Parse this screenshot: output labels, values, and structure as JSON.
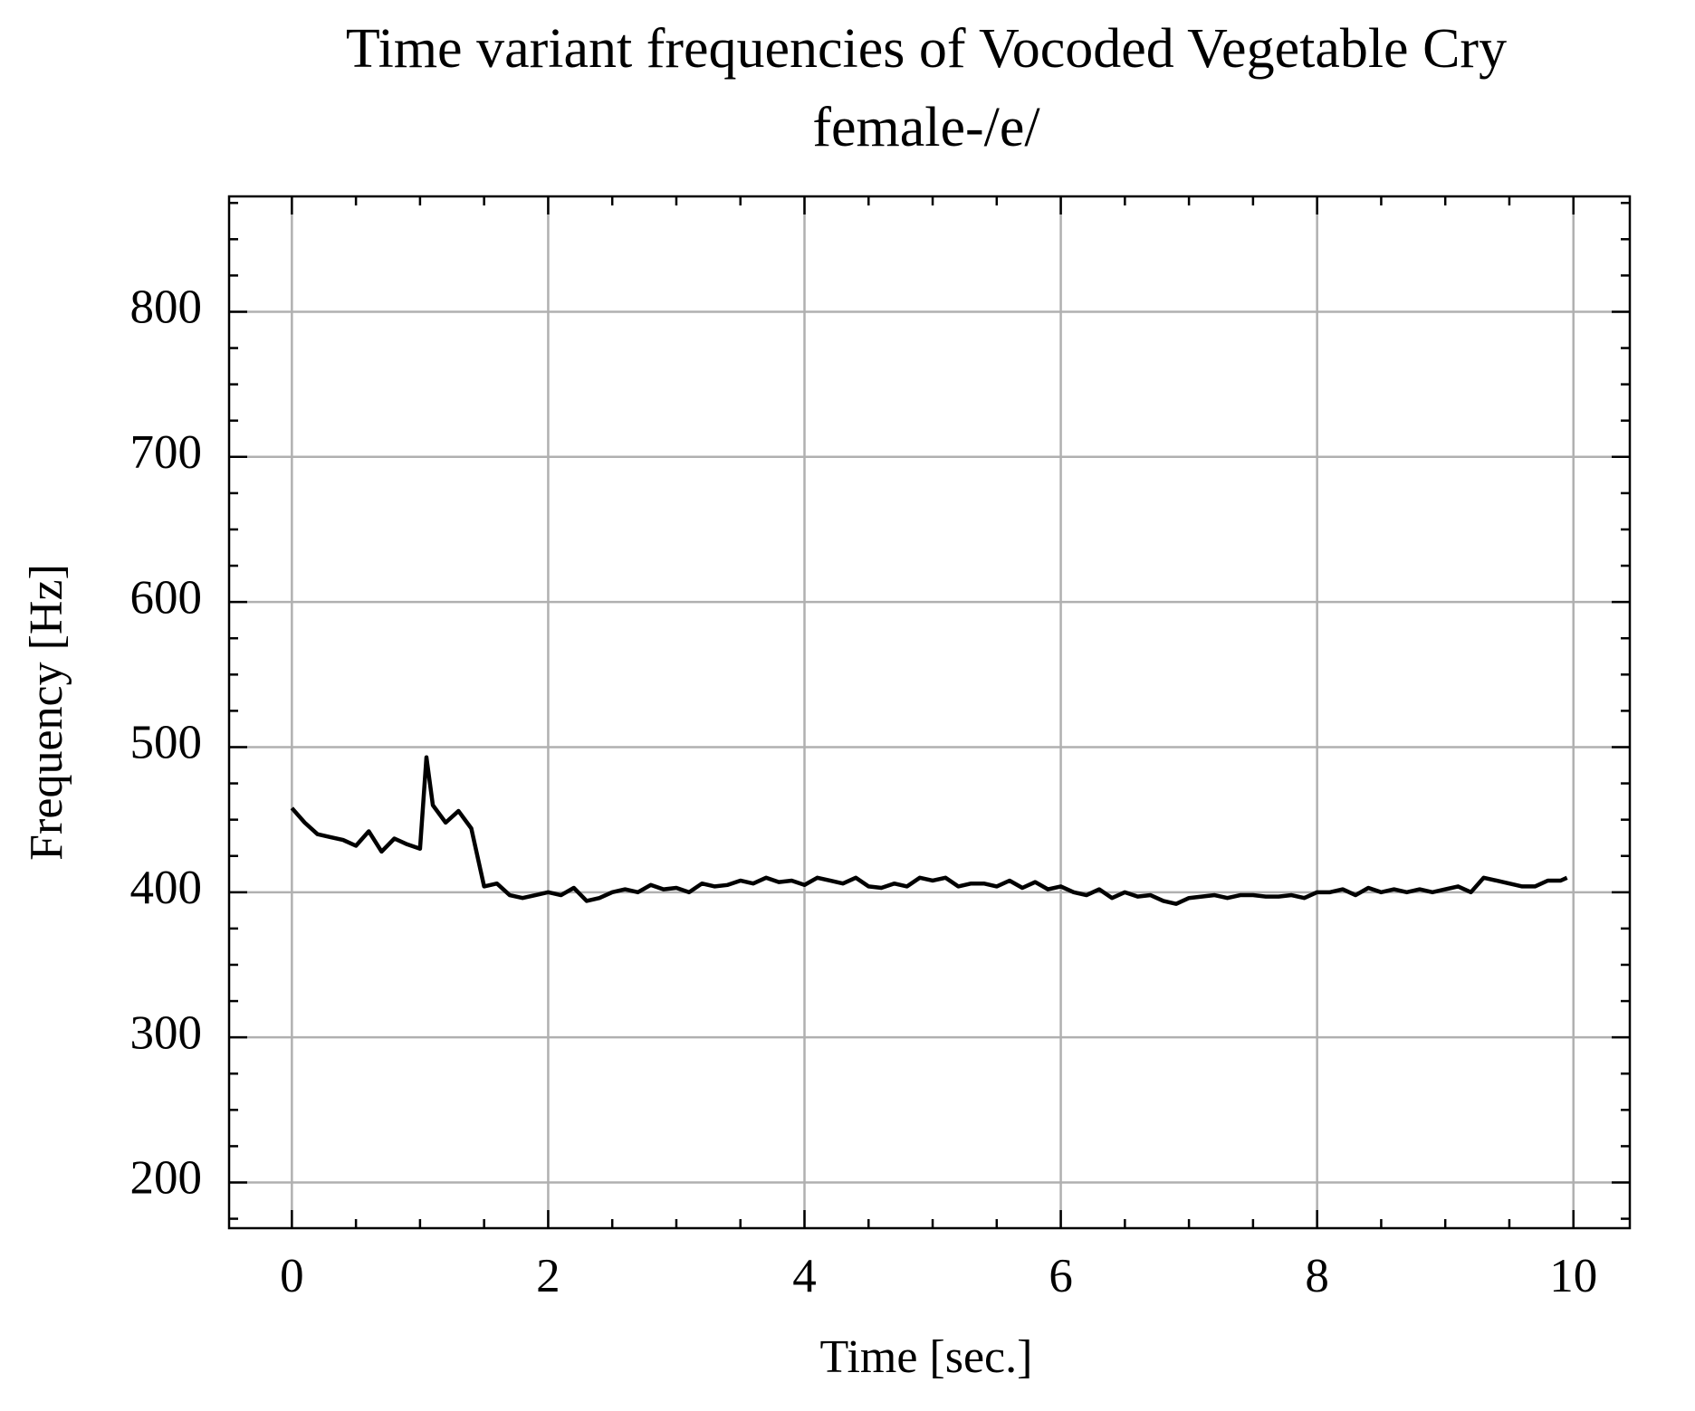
{
  "chart_data": {
    "type": "line",
    "title": [
      "Time variant frequencies of Vocoded Vegetable Cry",
      "female-/e/"
    ],
    "xlabel": "Time [sec.]",
    "ylabel": "Frequency [Hz]",
    "x": [
      0,
      0.1,
      0.2,
      0.3,
      0.4,
      0.5,
      0.6,
      0.7,
      0.8,
      0.9,
      1.0,
      1.05,
      1.1,
      1.2,
      1.3,
      1.4,
      1.5,
      1.6,
      1.7,
      1.8,
      1.9,
      2.0,
      2.1,
      2.2,
      2.3,
      2.4,
      2.5,
      2.6,
      2.7,
      2.8,
      2.9,
      3.0,
      3.1,
      3.2,
      3.3,
      3.4,
      3.5,
      3.6,
      3.7,
      3.8,
      3.9,
      4.0,
      4.1,
      4.2,
      4.3,
      4.4,
      4.5,
      4.6,
      4.7,
      4.8,
      4.9,
      5.0,
      5.1,
      5.2,
      5.3,
      5.4,
      5.5,
      5.6,
      5.7,
      5.8,
      5.9,
      6.0,
      6.1,
      6.2,
      6.3,
      6.4,
      6.5,
      6.6,
      6.7,
      6.8,
      6.9,
      7.0,
      7.1,
      7.2,
      7.3,
      7.4,
      7.5,
      7.6,
      7.7,
      7.8,
      7.9,
      8.0,
      8.1,
      8.2,
      8.3,
      8.4,
      8.5,
      8.6,
      8.7,
      8.8,
      8.9,
      9.0,
      9.1,
      9.2,
      9.3,
      9.4,
      9.5,
      9.6,
      9.7,
      9.8,
      9.9,
      9.95
    ],
    "series": [
      {
        "color": "#000000",
        "values": [
          458,
          448,
          440,
          438,
          436,
          432,
          442,
          428,
          437,
          433,
          430,
          493,
          460,
          448,
          456,
          444,
          404,
          406,
          398,
          396,
          398,
          400,
          398,
          403,
          394,
          396,
          400,
          402,
          400,
          405,
          402,
          403,
          400,
          406,
          404,
          405,
          408,
          406,
          410,
          407,
          408,
          405,
          410,
          408,
          406,
          410,
          404,
          403,
          406,
          404,
          410,
          408,
          410,
          404,
          406,
          406,
          404,
          408,
          403,
          407,
          402,
          404,
          400,
          398,
          402,
          396,
          400,
          397,
          398,
          394,
          392,
          396,
          397,
          398,
          396,
          398,
          398,
          397,
          397,
          398,
          396,
          400,
          400,
          402,
          398,
          403,
          400,
          402,
          400,
          402,
          400,
          402,
          404,
          400,
          410,
          408,
          406,
          404,
          404,
          408,
          408,
          410
        ]
      }
    ],
    "xlim": [
      -0.49,
      10.44
    ],
    "ylim": [
      168.5,
      879.5
    ],
    "xticks": [
      0,
      2,
      4,
      6,
      8,
      10
    ],
    "yticks": [
      200,
      300,
      400,
      500,
      600,
      700,
      800
    ],
    "minor_xticks": [
      0.5,
      1,
      1.5,
      2.5,
      3,
      3.5,
      4.5,
      5,
      5.5,
      6.5,
      7,
      7.5,
      8.5,
      9,
      9.5
    ],
    "minor_yticks": [
      175,
      225,
      250,
      275,
      325,
      350,
      375,
      425,
      450,
      475,
      525,
      550,
      575,
      625,
      650,
      675,
      725,
      750,
      775,
      825,
      850,
      875
    ],
    "grid": true
  }
}
